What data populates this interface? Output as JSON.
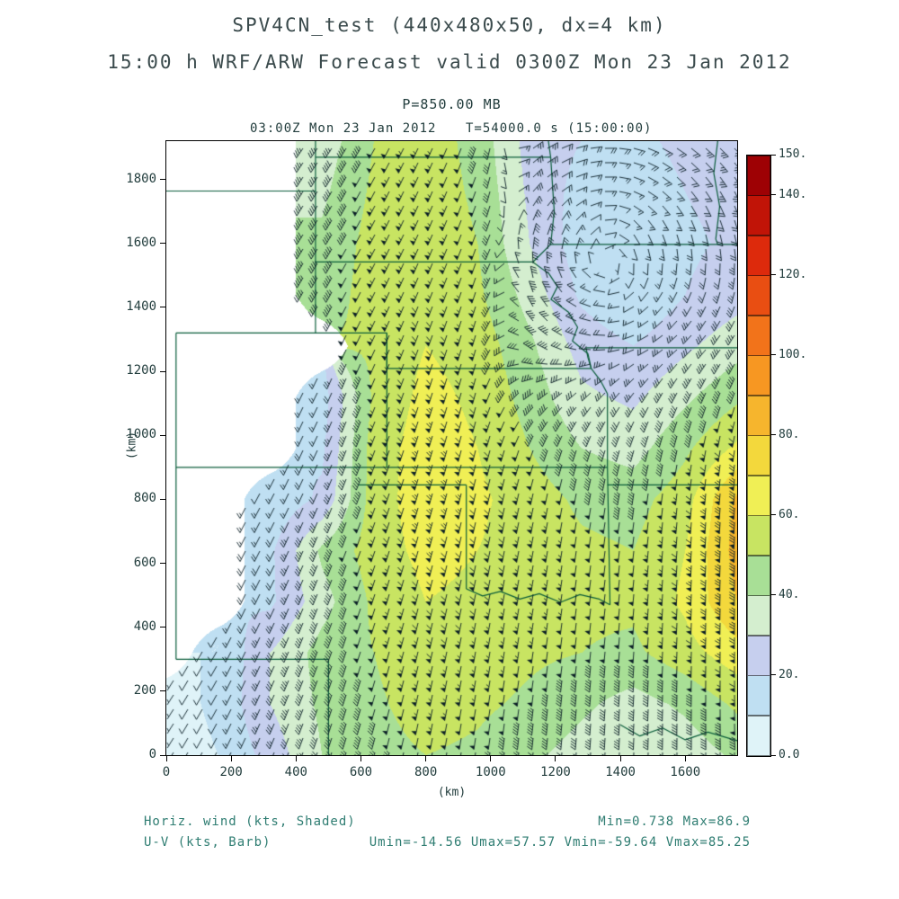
{
  "header": {
    "title": "SPV4CN_test (440x480x50, dx=4 km)",
    "subtitle": "15:00 h WRF/ARW Forecast valid 0300Z Mon 23 Jan 2012",
    "level_label": "P=850.00 MB",
    "valid_label": "03:00Z Mon 23 Jan 2012",
    "time_label": "T=54000.0 s (15:00:00)"
  },
  "footer": {
    "field_label": "Horiz. wind (kts, Shaded)",
    "barb_label": "U-V (kts, Barb)",
    "minmax_label": "Min=0.738 Max=86.9",
    "uv_minmax_label": "Umin=-14.56 Umax=57.57 Vmin=-59.64 Vmax=85.25"
  },
  "chart_data": {
    "type": "heatmap",
    "title": "SPV4CN_test (440x480x50, dx=4 km)",
    "subtitle": "15:00 h WRF/ARW Forecast valid 0300Z Mon 23 Jan 2012",
    "field": "Horizontal wind speed at P=850.00 MB (kts, shaded) with U-V wind barbs (kts); white areas are below-ground (masked)",
    "axes": {
      "x_label": "(km)",
      "y_label": "(km)",
      "x_ticks": [
        0,
        200,
        400,
        600,
        800,
        1000,
        1200,
        1400,
        1600
      ],
      "y_ticks": [
        0,
        200,
        400,
        600,
        800,
        1000,
        1200,
        1400,
        1600,
        1800
      ],
      "x_range": [
        0,
        1760
      ],
      "y_range": [
        0,
        1920
      ]
    },
    "colorbar": {
      "levels": [
        0,
        10,
        20,
        30,
        40,
        50,
        60,
        70,
        80,
        90,
        100,
        110,
        120,
        130,
        140,
        150
      ],
      "colors": [
        "#dff3f8",
        "#bfdff2",
        "#c6cfee",
        "#d4eecf",
        "#a8df96",
        "#c8e462",
        "#f0ef55",
        "#f3d83c",
        "#f6b52d",
        "#f79722",
        "#f2731a",
        "#e94e12",
        "#dd2a0c",
        "#c11407",
        "#9e0104"
      ],
      "tick_labels": [
        {
          "value": 150,
          "label": "150."
        },
        {
          "value": 140,
          "label": "140."
        },
        {
          "value": 120,
          "label": "120."
        },
        {
          "value": 100,
          "label": "100."
        },
        {
          "value": 80,
          "label": "80."
        },
        {
          "value": 60,
          "label": "60."
        },
        {
          "value": 40,
          "label": "40."
        },
        {
          "value": 20,
          "label": "20."
        },
        {
          "value": 0,
          "label": "0.0"
        }
      ]
    },
    "grid_spacing_km": 160,
    "x_km": [
      0,
      160,
      320,
      480,
      640,
      800,
      960,
      1120,
      1280,
      1440,
      1600,
      1760
    ],
    "y_km": [
      1920,
      1760,
      1600,
      1440,
      1280,
      1120,
      960,
      800,
      640,
      480,
      320,
      160,
      0
    ],
    "speed_kts": [
      [
        null,
        null,
        null,
        34,
        50,
        56,
        46,
        26,
        20,
        18,
        22,
        26
      ],
      [
        null,
        null,
        null,
        38,
        52,
        56,
        48,
        28,
        16,
        15,
        20,
        24
      ],
      [
        null,
        null,
        null,
        42,
        54,
        57,
        50,
        30,
        14,
        12,
        18,
        22
      ],
      [
        null,
        null,
        null,
        44,
        55,
        58,
        52,
        36,
        18,
        10,
        20,
        26
      ],
      [
        null,
        null,
        null,
        null,
        52,
        60,
        56,
        42,
        26,
        20,
        28,
        36
      ],
      [
        null,
        null,
        null,
        15,
        52,
        63,
        58,
        46,
        32,
        28,
        38,
        48
      ],
      [
        null,
        null,
        null,
        18,
        55,
        65,
        60,
        50,
        40,
        36,
        48,
        62
      ],
      [
        null,
        null,
        12,
        22,
        55,
        66,
        62,
        55,
        48,
        46,
        56,
        82
      ],
      [
        null,
        null,
        18,
        42,
        55,
        63,
        60,
        56,
        52,
        50,
        60,
        84
      ],
      [
        null,
        null,
        18,
        36,
        52,
        60,
        58,
        55,
        52,
        52,
        62,
        80
      ],
      [
        null,
        10,
        30,
        44,
        50,
        58,
        56,
        52,
        50,
        48,
        56,
        66
      ],
      [
        6,
        12,
        30,
        42,
        48,
        55,
        52,
        48,
        42,
        36,
        42,
        52
      ],
      [
        5,
        10,
        24,
        40,
        46,
        50,
        48,
        42,
        36,
        30,
        34,
        42
      ]
    ],
    "wind_from_deg": [
      [
        230,
        230,
        230,
        215,
        210,
        205,
        200,
        57,
        79,
        104,
        125,
        135
      ],
      [
        230,
        230,
        225,
        212,
        208,
        204,
        200,
        41,
        71,
        114,
        141,
        154
      ],
      [
        230,
        228,
        222,
        212,
        208,
        204,
        200,
        10,
        30,
        156,
        171,
        170
      ],
      [
        228,
        225,
        220,
        210,
        206,
        202,
        198,
        340,
        300,
        233,
        206,
        195
      ],
      [
        226,
        222,
        215,
        208,
        205,
        200,
        196,
        309,
        284,
        252,
        228,
        215
      ],
      [
        225,
        220,
        212,
        206,
        202,
        198,
        195,
        230,
        225,
        215,
        205,
        200
      ],
      [
        222,
        218,
        210,
        205,
        201,
        197,
        194,
        200,
        198,
        196,
        192,
        188
      ],
      [
        220,
        215,
        208,
        204,
        200,
        196,
        193,
        192,
        190,
        188,
        186,
        184
      ],
      [
        218,
        214,
        207,
        203,
        199,
        195,
        192,
        190,
        188,
        186,
        184,
        182
      ],
      [
        216,
        212,
        206,
        202,
        198,
        194,
        191,
        189,
        187,
        185,
        183,
        181
      ],
      [
        215,
        210,
        205,
        201,
        197,
        193,
        190,
        188,
        186,
        184,
        182,
        180
      ],
      [
        214,
        209,
        204,
        200,
        196,
        192,
        189,
        187,
        185,
        183,
        181,
        179
      ],
      [
        213,
        208,
        203,
        199,
        195,
        191,
        188,
        186,
        184,
        182,
        180,
        178
      ]
    ],
    "stats": {
      "min": 0.738,
      "max": 86.9,
      "umin": -14.56,
      "umax": 57.57,
      "vmin": -59.64,
      "vmax": 85.25
    },
    "map_borders_km": [
      [
        [
          30,
          900
        ],
        [
          30,
          1320
        ]
      ],
      [
        [
          30,
          1320
        ],
        [
          680,
          1320
        ]
      ],
      [
        [
          680,
          900
        ],
        [
          680,
          1320
        ]
      ],
      [
        [
          30,
          900
        ],
        [
          1360,
          900
        ]
      ],
      [
        [
          460,
          1320
        ],
        [
          460,
          1920
        ]
      ],
      [
        [
          0,
          1764
        ],
        [
          460,
          1764
        ]
      ],
      [
        [
          460,
          1870
        ],
        [
          1185,
          1870
        ]
      ],
      [
        [
          1185,
          1870
        ],
        [
          1178,
          1920
        ]
      ],
      [
        [
          1185,
          1870
        ],
        [
          1196,
          1700
        ],
        [
          1185,
          1597
        ]
      ],
      [
        [
          1185,
          1597
        ],
        [
          1760,
          1597
        ]
      ],
      [
        [
          1185,
          1597
        ],
        [
          1156,
          1568
        ],
        [
          1130,
          1542
        ]
      ],
      [
        [
          460,
          1542
        ],
        [
          1130,
          1542
        ]
      ],
      [
        [
          1130,
          1542
        ],
        [
          1180,
          1505
        ],
        [
          1206,
          1465
        ],
        [
          1186,
          1425
        ],
        [
          1240,
          1385
        ],
        [
          1268,
          1338
        ],
        [
          1252,
          1295
        ],
        [
          1300,
          1255
        ],
        [
          1310,
          1209
        ]
      ],
      [
        [
          680,
          1209
        ],
        [
          1310,
          1209
        ]
      ],
      [
        [
          680,
          1209
        ],
        [
          680,
          1320
        ]
      ],
      [
        [
          1310,
          1209
        ],
        [
          1300,
          1243
        ],
        [
          1294,
          1274
        ]
      ],
      [
        [
          1294,
          1274
        ],
        [
          1760,
          1274
        ]
      ],
      [
        [
          1310,
          1209
        ],
        [
          1338,
          1172
        ],
        [
          1360,
          1130
        ]
      ],
      [
        [
          1360,
          1130
        ],
        [
          1360,
          900
        ]
      ],
      [
        [
          1360,
          900
        ],
        [
          1368,
          470
        ]
      ],
      [
        [
          1360,
          845
        ],
        [
          1760,
          845
        ]
      ],
      [
        [
          593,
          845
        ],
        [
          925,
          845
        ]
      ],
      [
        [
          925,
          845
        ],
        [
          925,
          520
        ]
      ],
      [
        [
          925,
          520
        ],
        [
          975,
          498
        ],
        [
          1030,
          512
        ],
        [
          1090,
          488
        ],
        [
          1150,
          505
        ],
        [
          1215,
          478
        ],
        [
          1275,
          502
        ],
        [
          1335,
          488
        ],
        [
          1368,
          470
        ]
      ],
      [
        [
          30,
          900
        ],
        [
          30,
          300
        ]
      ],
      [
        [
          30,
          300
        ],
        [
          500,
          300
        ]
      ],
      [
        [
          500,
          300
        ],
        [
          500,
          0
        ]
      ],
      [
        [
          1400,
          95
        ],
        [
          1460,
          60
        ],
        [
          1530,
          85
        ],
        [
          1600,
          48
        ],
        [
          1670,
          72
        ],
        [
          1760,
          45
        ]
      ],
      [
        [
          1700,
          1920
        ],
        [
          1688,
          1820
        ],
        [
          1706,
          1716
        ],
        [
          1694,
          1614
        ],
        [
          1700,
          1597
        ]
      ]
    ]
  },
  "style": {
    "border_color": "#0b5d3b",
    "barb_color": "#0a1e26",
    "frame_color": "#000000",
    "text_dark": "#223d3d",
    "text_teal": "#2f7d72",
    "title_color": "#3a4a4c",
    "mask_color": "#ffffff"
  }
}
